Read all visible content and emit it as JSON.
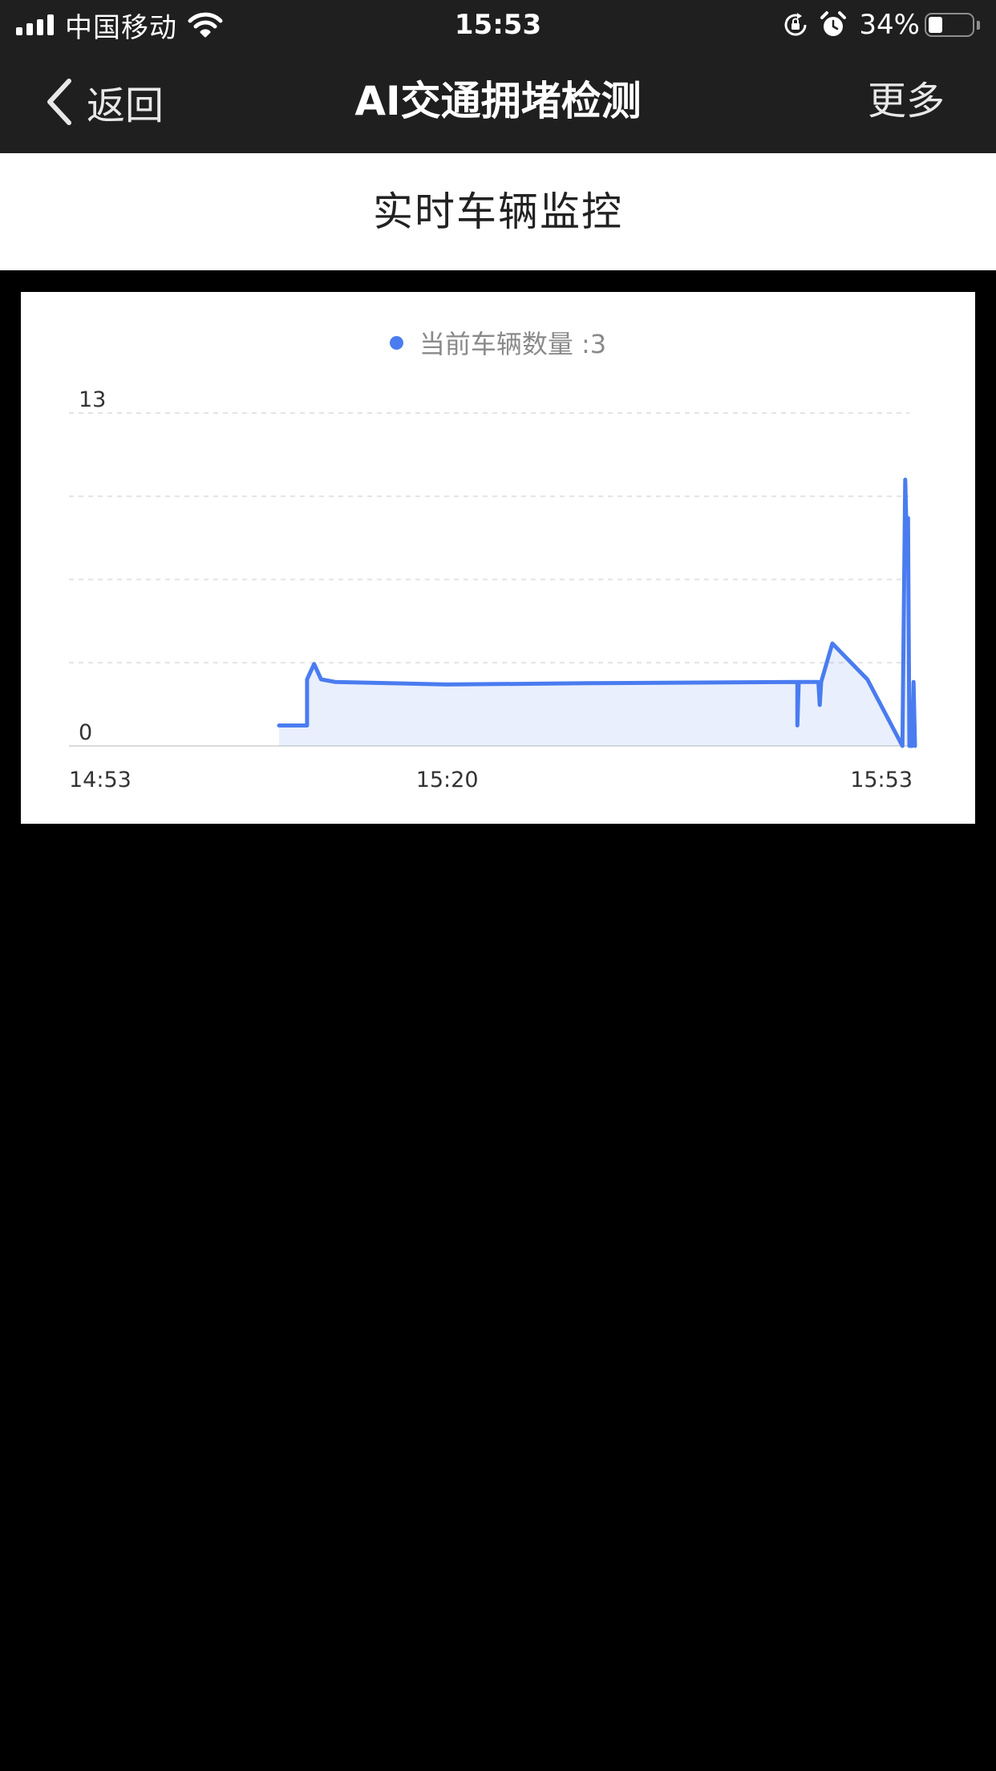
{
  "status_bar": {
    "carrier": "中国移动",
    "time": "15:53",
    "battery_percent": "34%",
    "battery_level": 0.34,
    "icons": [
      "signal-icon",
      "wifi-icon",
      "orientation-lock-icon",
      "alarm-icon",
      "battery-icon"
    ]
  },
  "nav": {
    "back_label": "返回",
    "title": "AI交通拥堵检测",
    "more_label": "更多"
  },
  "section": {
    "title": "实时车辆监控"
  },
  "chart": {
    "legend_label": "当前车辆数量 :3",
    "accent_color": "#4a7cf0"
  },
  "chart_data": {
    "type": "area",
    "title": "",
    "xlabel": "",
    "ylabel": "",
    "series": [
      {
        "name": "当前车辆数量",
        "current_value": 3,
        "x": [
          "15:08",
          "15:10",
          "15:10",
          "15:10.5",
          "15:11",
          "15:12",
          "15:20",
          "15:30",
          "15:45",
          "15:45",
          "15:45.1",
          "15:45.2",
          "15:46.5",
          "15:46.6",
          "15:46.7",
          "15:47.5",
          "15:50",
          "15:52.5",
          "15:52.7",
          "15:52.8",
          "15:52.9",
          "15:53",
          "15:53.2",
          "15:53.3",
          "15:53.4"
        ],
        "values": [
          0.8,
          0.8,
          2.6,
          3.2,
          2.6,
          2.5,
          2.4,
          2.45,
          2.5,
          0.8,
          2.5,
          2.5,
          2.5,
          1.6,
          2.5,
          4.0,
          2.6,
          0.0,
          10.4,
          8.3,
          8.9,
          0.0,
          0.0,
          2.5,
          0.0
        ]
      }
    ],
    "x_ticks": [
      "14:53",
      "15:20",
      "15:53"
    ],
    "y_ticks": [
      "0",
      "13"
    ],
    "ylim": [
      0,
      13
    ],
    "xlim": [
      "14:53",
      "15:53"
    ],
    "grid": true,
    "legend_position": "top-center"
  }
}
